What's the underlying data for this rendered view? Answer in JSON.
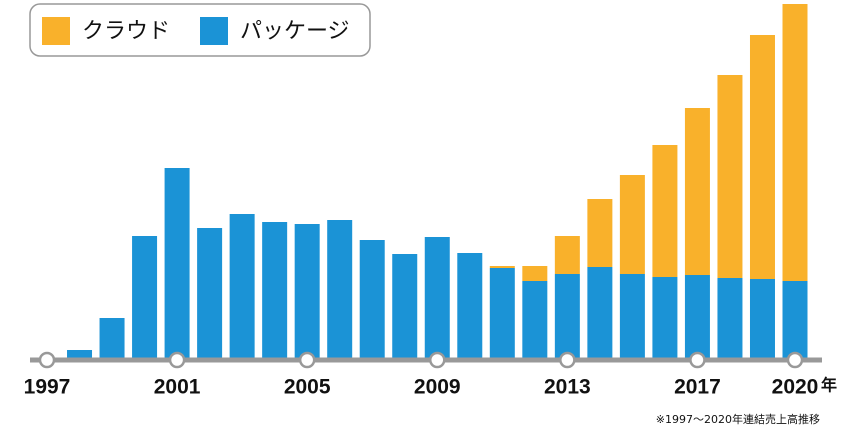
{
  "chart_data": {
    "type": "stacked_bar",
    "categories": [
      "1997",
      null,
      null,
      null,
      "2001",
      null,
      null,
      null,
      "2005",
      null,
      null,
      null,
      "2009",
      null,
      null,
      null,
      "2013",
      null,
      null,
      null,
      "2017",
      null,
      null,
      "2020"
    ],
    "xlabel": "年",
    "series": [
      {
        "name": "パッケージ",
        "color": "#1b93d6",
        "values": [
          0,
          8,
          40,
          122,
          190,
          130,
          144,
          136,
          134,
          138,
          118,
          104,
          121,
          105,
          90,
          77,
          84,
          91,
          84,
          81,
          83,
          80,
          79,
          77
        ]
      },
      {
        "name": "クラウド",
        "color": "#f9b12b",
        "values": [
          0,
          0,
          0,
          0,
          0,
          0,
          0,
          0,
          0,
          0,
          0,
          0,
          0,
          0,
          2,
          15,
          38,
          68,
          99,
          132,
          167,
          203,
          244,
          277
        ]
      }
    ],
    "legend": "top-left",
    "note": "※1997〜2020年連結売上高推移"
  }
}
